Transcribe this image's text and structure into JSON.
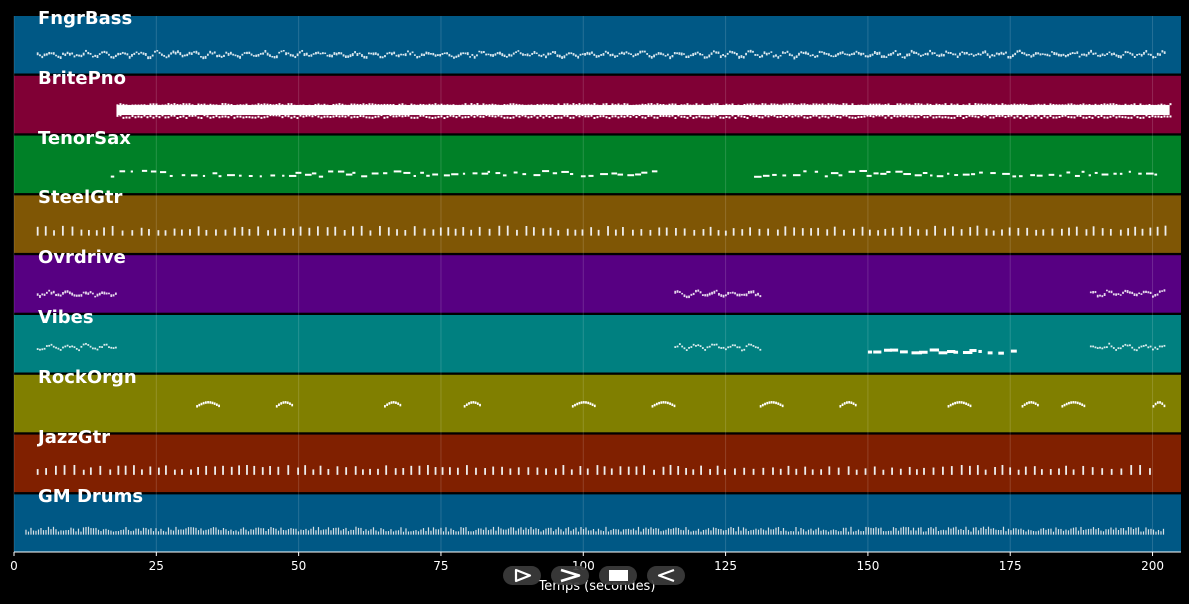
{
  "player": {
    "x_axis_label": "Temps (secondes)",
    "x_ticks": [
      0,
      25,
      50,
      75,
      100,
      125,
      150,
      175,
      200
    ],
    "x_max": 205,
    "controls": {
      "play": "play-icon",
      "fast_forward": "fast-forward-icon",
      "stop": "stop-icon",
      "rewind": "rewind-icon"
    }
  },
  "tracks": [
    {
      "name": "FngrBass",
      "color": "#005885",
      "pattern": "dense_wavy",
      "segments": [
        [
          4,
          202
        ]
      ]
    },
    {
      "name": "BritePno",
      "color": "#800035",
      "pattern": "solid_block",
      "segments": [
        [
          18,
          203
        ]
      ]
    },
    {
      "name": "TenorSax",
      "color": "#008027",
      "pattern": "sparse_dashes",
      "segments": [
        [
          17,
          113
        ],
        [
          130,
          201
        ]
      ]
    },
    {
      "name": "SteelGtr",
      "color": "#7f5605",
      "pattern": "vertical_ticks",
      "segments": [
        [
          4,
          203
        ]
      ]
    },
    {
      "name": "Ovrdrive",
      "color": "#570082",
      "pattern": "wavy_bursts",
      "segments": [
        [
          4,
          18
        ],
        [
          116,
          131
        ],
        [
          189,
          202
        ]
      ]
    },
    {
      "name": "Vibes",
      "color": "#008080",
      "pattern": "mixed",
      "segments": [
        [
          4,
          18
        ],
        [
          116,
          131
        ],
        [
          150,
          177
        ],
        [
          189,
          202
        ]
      ]
    },
    {
      "name": "RockOrgn",
      "color": "#807f00",
      "pattern": "small_clusters",
      "segments": [
        [
          32,
          36
        ],
        [
          46,
          49
        ],
        [
          65,
          68
        ],
        [
          79,
          82
        ],
        [
          98,
          102
        ],
        [
          112,
          116
        ],
        [
          131,
          135
        ],
        [
          145,
          148
        ],
        [
          164,
          168
        ],
        [
          177,
          180
        ],
        [
          184,
          188
        ],
        [
          200,
          202
        ]
      ]
    },
    {
      "name": "JazzGtr",
      "color": "#802000",
      "pattern": "vertical_ticks",
      "segments": [
        [
          4,
          200
        ]
      ]
    },
    {
      "name": "GM Drums",
      "color": "#005885",
      "pattern": "drums",
      "segments": [
        [
          2,
          202
        ]
      ]
    }
  ]
}
